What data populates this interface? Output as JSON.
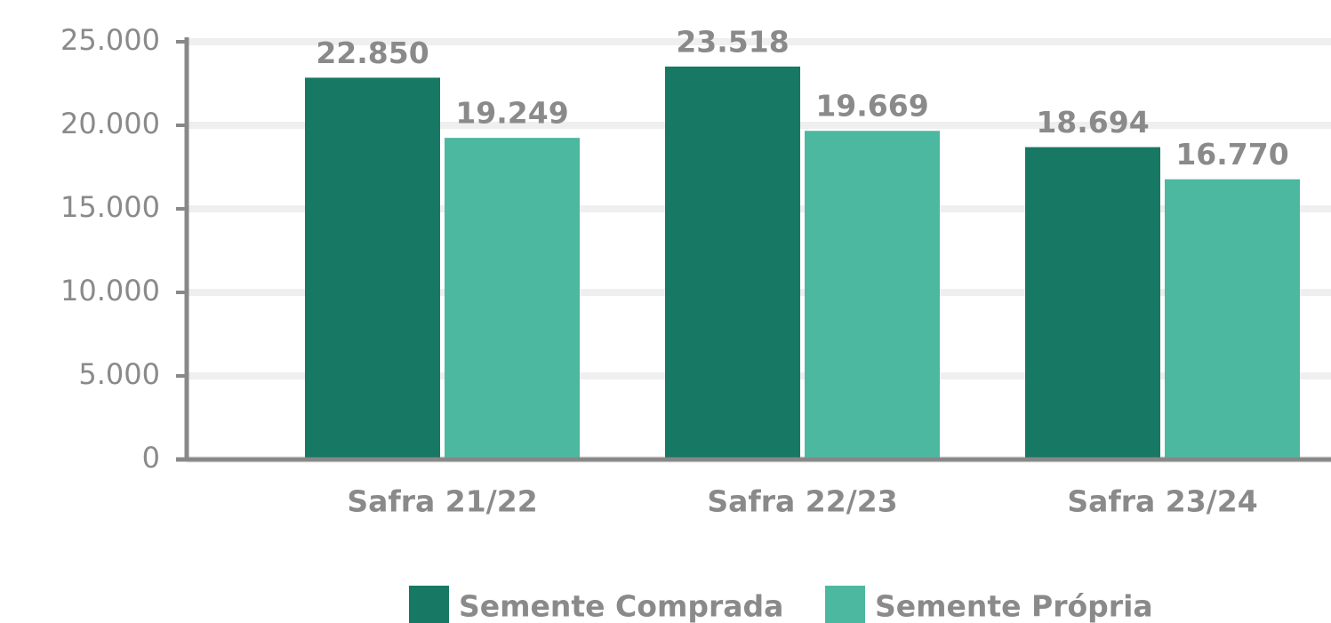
{
  "chart_data": {
    "type": "bar",
    "categories": [
      "Safra 21/22",
      "Safra 22/23",
      "Safra 23/24"
    ],
    "series": [
      {
        "name": "Semente Comprada",
        "color": "#177864",
        "values": [
          22850,
          23518,
          18694
        ],
        "value_labels": [
          "22.850",
          "23.518",
          "18.694"
        ]
      },
      {
        "name": "Semente Própria",
        "color": "#4cb8a0",
        "values": [
          19249,
          19669,
          16770
        ],
        "value_labels": [
          "19.249",
          "19.669",
          "16.770"
        ]
      }
    ],
    "ylim": [
      0,
      25000
    ],
    "yticks": [
      0,
      {
        "value": 5000,
        "label": "5.000"
      },
      {
        "value": 10000,
        "label": "10.000"
      },
      {
        "value": 15000,
        "label": "15.000"
      },
      {
        "value": 20000,
        "label": "20.000"
      },
      {
        "value": 25000,
        "label": "25.000"
      }
    ],
    "grid": true,
    "legend": "bottom"
  }
}
